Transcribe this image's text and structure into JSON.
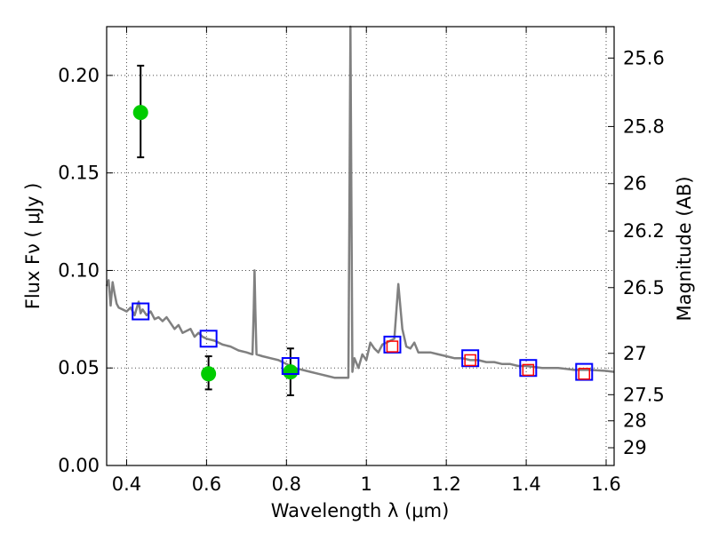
{
  "chart_data": {
    "type": "scatter",
    "xlabel": "Wavelength  λ (μm)",
    "ylabel": "Flux  Fν  ( μJy )",
    "ylabel2": "Magnitude (AB)",
    "xlim": [
      0.35,
      1.62
    ],
    "ylim": [
      0.0,
      0.225
    ],
    "grid": true,
    "x_ticks": [
      0.4,
      0.6,
      0.8,
      1.0,
      1.2,
      1.4,
      1.6
    ],
    "x_tick_labels": [
      "0.4",
      "0.6",
      "0.8",
      "1",
      "1.2",
      "1.4",
      "1.6"
    ],
    "y_ticks": [
      0.0,
      0.05,
      0.1,
      0.15,
      0.2
    ],
    "y_tick_labels": [
      "0.00",
      "0.05",
      "0.10",
      "0.15",
      "0.20"
    ],
    "mag_ticks": [
      {
        "label": "25.6",
        "flux": 0.2089
      },
      {
        "label": "25.8",
        "flux": 0.1738
      },
      {
        "label": "26",
        "flux": 0.1445
      },
      {
        "label": "26.2",
        "flux": 0.1202
      },
      {
        "label": "26.5",
        "flux": 0.0912
      },
      {
        "label": "27",
        "flux": 0.0575
      },
      {
        "label": "27.5",
        "flux": 0.0363
      },
      {
        "label": "28",
        "flux": 0.0229
      },
      {
        "label": "29",
        "flux": 0.0091
      }
    ],
    "series": [
      {
        "kind": "line",
        "color": "#808080",
        "x": [
          0.35,
          0.355,
          0.36,
          0.365,
          0.37,
          0.375,
          0.38,
          0.39,
          0.4,
          0.41,
          0.42,
          0.43,
          0.435,
          0.44,
          0.45,
          0.46,
          0.47,
          0.48,
          0.49,
          0.5,
          0.51,
          0.52,
          0.53,
          0.54,
          0.55,
          0.56,
          0.57,
          0.58,
          0.59,
          0.6,
          0.62,
          0.64,
          0.66,
          0.68,
          0.7,
          0.715,
          0.718,
          0.72,
          0.722,
          0.725,
          0.74,
          0.76,
          0.78,
          0.8,
          0.82,
          0.84,
          0.86,
          0.88,
          0.9,
          0.92,
          0.94,
          0.955,
          0.958,
          0.96,
          0.962,
          0.965,
          0.97,
          0.98,
          0.99,
          1.0,
          1.01,
          1.02,
          1.03,
          1.04,
          1.05,
          1.06,
          1.07,
          1.08,
          1.09,
          1.1,
          1.11,
          1.12,
          1.13,
          1.14,
          1.16,
          1.18,
          1.2,
          1.22,
          1.24,
          1.26,
          1.28,
          1.3,
          1.32,
          1.34,
          1.36,
          1.38,
          1.4,
          1.44,
          1.48,
          1.52,
          1.56,
          1.6,
          1.62
        ],
        "y": [
          0.092,
          0.095,
          0.082,
          0.094,
          0.088,
          0.083,
          0.081,
          0.08,
          0.079,
          0.081,
          0.077,
          0.084,
          0.078,
          0.08,
          0.077,
          0.079,
          0.075,
          0.076,
          0.074,
          0.076,
          0.073,
          0.07,
          0.072,
          0.068,
          0.069,
          0.07,
          0.066,
          0.068,
          0.066,
          0.065,
          0.064,
          0.062,
          0.061,
          0.059,
          0.058,
          0.057,
          0.08,
          0.1,
          0.08,
          0.057,
          0.056,
          0.055,
          0.054,
          0.052,
          0.05,
          0.049,
          0.048,
          0.047,
          0.046,
          0.045,
          0.045,
          0.045,
          0.15,
          0.225,
          0.15,
          0.048,
          0.055,
          0.05,
          0.057,
          0.054,
          0.063,
          0.06,
          0.058,
          0.062,
          0.063,
          0.064,
          0.065,
          0.093,
          0.07,
          0.061,
          0.06,
          0.063,
          0.058,
          0.058,
          0.058,
          0.057,
          0.056,
          0.055,
          0.055,
          0.054,
          0.054,
          0.053,
          0.053,
          0.052,
          0.052,
          0.051,
          0.051,
          0.05,
          0.05,
          0.049,
          0.049,
          0.0485,
          0.048
        ]
      },
      {
        "kind": "points-with-errors",
        "color": "#00cc00",
        "x": [
          0.435,
          0.605,
          0.81
        ],
        "y": [
          0.181,
          0.047,
          0.048
        ],
        "yerr_low": [
          0.158,
          0.039,
          0.036
        ],
        "yerr_high": [
          0.205,
          0.056,
          0.06
        ]
      },
      {
        "kind": "open-squares",
        "color": "#0000ff",
        "x": [
          0.435,
          0.605,
          0.81,
          1.065,
          1.26,
          1.405,
          1.545
        ],
        "y": [
          0.079,
          0.065,
          0.051,
          0.062,
          0.055,
          0.05,
          0.048
        ]
      },
      {
        "kind": "open-squares-small",
        "color": "#ff0000",
        "x": [
          1.065,
          1.26,
          1.405,
          1.545
        ],
        "y": [
          0.061,
          0.054,
          0.049,
          0.047
        ]
      }
    ]
  }
}
